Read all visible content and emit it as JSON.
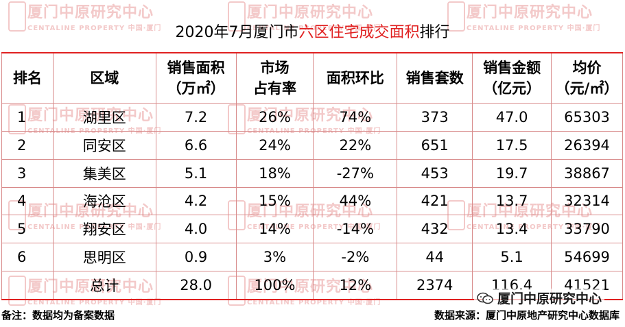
{
  "title": {
    "prefix": "2020年7月厦门市",
    "highlight": "六区住宅成交面积",
    "suffix": "排行"
  },
  "watermark": {
    "cn": "厦门中原研究中心",
    "en": "CENTALINE PROPERTY",
    "small": "中国·厦门"
  },
  "table": {
    "headers": [
      [
        "排名"
      ],
      [
        "区域"
      ],
      [
        "销售面积",
        "（万㎡）"
      ],
      [
        "市场",
        "占有率"
      ],
      [
        "面积环比"
      ],
      [
        "销售套数"
      ],
      [
        "销售金额",
        "（亿元）"
      ],
      [
        "均价",
        "（元/㎡）"
      ]
    ],
    "rows": [
      [
        "1",
        "湖里区",
        "7.2",
        "26%",
        "74%",
        "373",
        "47.0",
        "65303"
      ],
      [
        "2",
        "同安区",
        "6.6",
        "24%",
        "22%",
        "651",
        "17.5",
        "26394"
      ],
      [
        "3",
        "集美区",
        "5.1",
        "18%",
        "-27%",
        "453",
        "19.7",
        "38867"
      ],
      [
        "4",
        "海沧区",
        "4.2",
        "15%",
        "44%",
        "421",
        "13.7",
        "32314"
      ],
      [
        "5",
        "翔安区",
        "4.0",
        "14%",
        "-14%",
        "432",
        "13.4",
        "33790"
      ],
      [
        "6",
        "思明区",
        "0.9",
        "3%",
        "-2%",
        "44",
        "5.1",
        "54699"
      ],
      [
        "",
        "总计",
        "28.0",
        "100%",
        "12%",
        "2374",
        "116.4",
        "41521"
      ]
    ]
  },
  "footer": {
    "note": "备注：数据均为备案数据",
    "source": "数据来源：厦门中原地产研究中心数据库",
    "wechat_name": "厦门中原研究中心"
  },
  "colors": {
    "accent": "#e02020",
    "grid": "#d88a8a",
    "watermark": "#f3c9c9"
  },
  "icons": {
    "wechat": "wechat-icon"
  }
}
